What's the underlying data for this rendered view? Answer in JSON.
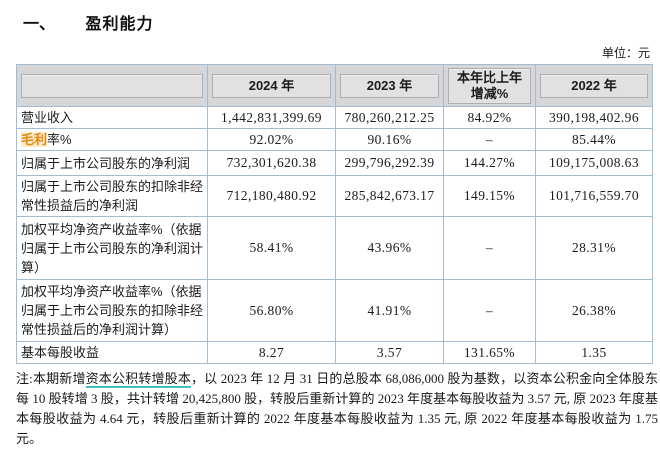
{
  "page": {
    "title_num": "一、",
    "title_text": "盈利能力",
    "unit_label": "单位：元"
  },
  "table": {
    "headers": [
      "",
      "2024 年",
      "2023 年",
      "本年比上年增减%",
      "2022 年"
    ],
    "rows": [
      {
        "label": "营业收入",
        "values": [
          "1,442,831,399.69",
          "780,260,212.25",
          "84.92%",
          "390,198,402.96"
        ],
        "red_box": false
      },
      {
        "label": "毛利率%",
        "label_highlight": "毛利",
        "label_rest": "率%",
        "values": [
          "92.02%",
          "90.16%",
          "–",
          "85.44%"
        ],
        "red_box": true
      },
      {
        "label": "归属于上市公司股东的净利润",
        "values": [
          "732,301,620.38",
          "299,796,292.39",
          "144.27%",
          "109,175,008.63"
        ],
        "red_box": false
      },
      {
        "label": "归属于上市公司股东的扣除非经常性损益后的净利润",
        "values": [
          "712,180,480.92",
          "285,842,673.17",
          "149.15%",
          "101,716,559.70"
        ],
        "red_box": false
      },
      {
        "label": "加权平均净资产收益率%（依据归属于上市公司股东的净利润计算）",
        "values": [
          "58.41%",
          "43.96%",
          "–",
          "28.31%"
        ],
        "red_box": false
      },
      {
        "label": "加权平均净资产收益率%（依据归属于上市公司股东的扣除非经常性损益后的净利润计算）",
        "values": [
          "56.80%",
          "41.91%",
          "–",
          "26.38%"
        ],
        "red_box": false
      },
      {
        "label": "基本每股收益",
        "values": [
          "8.27",
          "3.57",
          "131.65%",
          "1.35"
        ],
        "red_box": false
      }
    ]
  },
  "note": {
    "prefix": "注:本期新增",
    "link_text": "资本公积转增股本",
    "suffix": "，以 2023 年 12 月 31 日的总股本 68,086,000 股为基数，以资本公积金向全体股东每 10 股转增 3 股，共计转增 20,425,800 股，转股后重新计算的 2023 年度基本每股收益为 3.57 元, 原 2023 年度基本每股收益为 4.64 元，转股后重新计算的 2022 年度基本每股收益为 1.35 元, 原 2022 年度基本每股收益为 1.75 元。"
  },
  "colors": {
    "annotation_red": "#e02222",
    "highlight_orange": "#e08a10",
    "link_teal": "#3ec0c4",
    "table_border": "#a2bdd3",
    "header_bg": "#d6d6d6"
  }
}
